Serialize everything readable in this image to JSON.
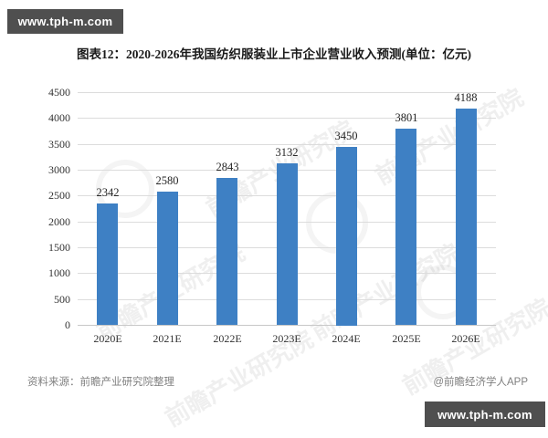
{
  "badges": {
    "top_label": "www.tph-m.com",
    "bottom_label": "www.tph-m.com",
    "background": "#4f4f4f",
    "text_color": "#ffffff"
  },
  "title": "图表12：2020-2026年我国纺织服装业上市企业营业收入预测(单位：亿元)",
  "footer": {
    "source": "资料来源：前瞻产业研究院整理",
    "credit": "@前瞻经济学人APP"
  },
  "watermark": {
    "text": "前瞻产业研究院"
  },
  "chart_data": {
    "type": "bar",
    "title": "图表12：2020-2026年我国纺织服装业上市企业营业收入预测(单位：亿元)",
    "categories": [
      "2020E",
      "2021E",
      "2022E",
      "2023E",
      "2024E",
      "2025E",
      "2026E"
    ],
    "values": [
      2342,
      2580,
      2843,
      3132,
      3450,
      3801,
      4188
    ],
    "xlabel": "",
    "ylabel": "",
    "unit": "亿元",
    "ylim": [
      0,
      4500
    ],
    "yticks": [
      0,
      500,
      1000,
      1500,
      2000,
      2500,
      3000,
      3500,
      4000,
      4500
    ],
    "grid": true,
    "legend": false,
    "bar_color": "#3e80c4",
    "gridline_color": "#dcdcdc",
    "label_color": "#333333"
  }
}
